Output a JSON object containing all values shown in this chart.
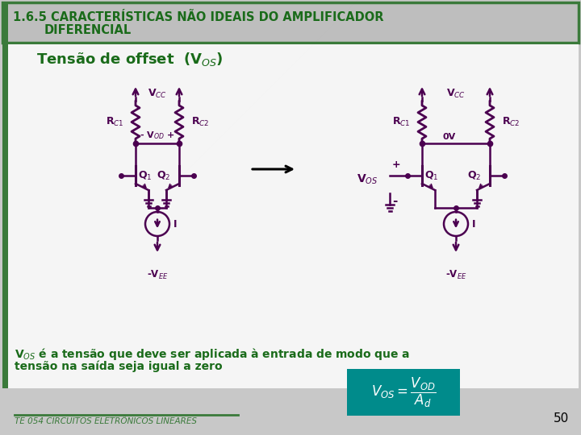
{
  "title_line1": "1.6.5 CARACTERÍSTICAS NÃO IDEAIS DO AMPLIFICADOR",
  "title_line2": "DIFERENCIAL",
  "subtitle": "Tensão de offset  (V$_{OS}$)",
  "slide_bg": "#c8c8c8",
  "title_bg": "#b8b8b8",
  "content_bg": "#f0f0f0",
  "title_color": "#1a6b1a",
  "subtitle_color": "#1a6b1a",
  "circuit_color": "#4b0050",
  "text_color": "#1a6b1a",
  "footer_text": "TE 054 CIRCUITOS ELETRÔNICOS LINEARES",
  "body_text_line1": "V$_{OS}$ é a tensão que deve ser aplicada à entrada de modo que a",
  "body_text_line2": "tensão na saída seja igual a zero",
  "page_number": "50",
  "formula_bg": "#008b8b",
  "left_border_color": "#3a7a3a",
  "green_border_color": "#3a7a3a"
}
